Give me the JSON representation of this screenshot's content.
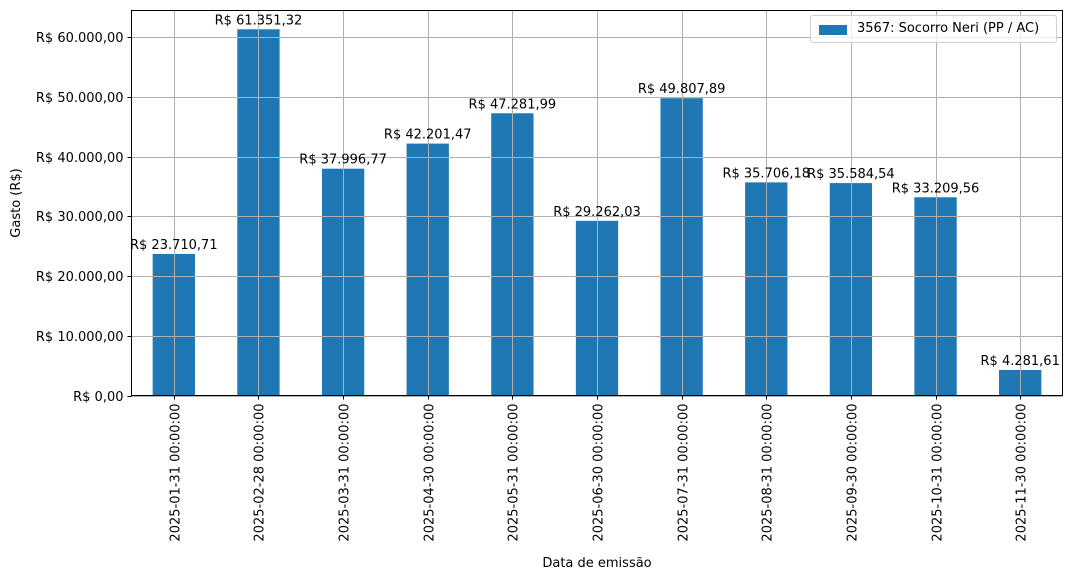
{
  "chart_data": {
    "type": "bar",
    "title": "",
    "xlabel": "Data de emissão",
    "ylabel": "Gasto (R$)",
    "ylim": [
      0,
      64500
    ],
    "grid": true,
    "legend_position": "upper right",
    "bar_color": "#1f77b4",
    "categories": [
      "2025-01-31 00:00:00",
      "2025-02-28 00:00:00",
      "2025-03-31 00:00:00",
      "2025-04-30 00:00:00",
      "2025-05-31 00:00:00",
      "2025-06-30 00:00:00",
      "2025-07-31 00:00:00",
      "2025-08-31 00:00:00",
      "2025-09-30 00:00:00",
      "2025-10-31 00:00:00",
      "2025-11-30 00:00:00"
    ],
    "series": [
      {
        "name": "3567: Socorro Neri (PP / AC)",
        "values": [
          23710.71,
          61351.32,
          37996.77,
          42201.47,
          47281.99,
          29262.03,
          49807.89,
          35706.18,
          35584.54,
          33209.56,
          4281.61
        ],
        "labels": [
          "R$ 23.710,71",
          "R$ 61.351,32",
          "R$ 37.996,77",
          "R$ 42.201,47",
          "R$ 47.281,99",
          "R$ 29.262,03",
          "R$ 49.807,89",
          "R$ 35.706,18",
          "R$ 35.584,54",
          "R$ 33.209,56",
          "R$ 4.281,61"
        ]
      }
    ],
    "yticks": [
      0,
      10000,
      20000,
      30000,
      40000,
      50000,
      60000
    ],
    "ytick_labels": [
      "R$ 0,00",
      "R$ 10.000,00",
      "R$ 20.000,00",
      "R$ 30.000,00",
      "R$ 40.000,00",
      "R$ 50.000,00",
      "R$ 60.000,00"
    ]
  },
  "legend": {
    "label": "3567: Socorro Neri (PP / AC)",
    "color": "#1f77b4"
  }
}
